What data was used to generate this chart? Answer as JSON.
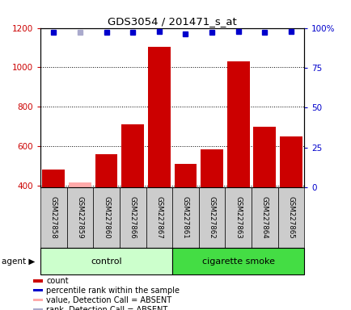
{
  "title": "GDS3054 / 201471_s_at",
  "samples": [
    "GSM227858",
    "GSM227859",
    "GSM227860",
    "GSM227866",
    "GSM227867",
    "GSM227861",
    "GSM227862",
    "GSM227863",
    "GSM227864",
    "GSM227865"
  ],
  "counts": [
    480,
    415,
    560,
    710,
    1105,
    510,
    585,
    1030,
    700,
    650
  ],
  "absent_count": [
    false,
    true,
    false,
    false,
    false,
    false,
    false,
    false,
    false,
    false
  ],
  "percentile_ranks": [
    97,
    97,
    97,
    97,
    98,
    96,
    97,
    98,
    97,
    98
  ],
  "absent_rank": [
    false,
    true,
    false,
    false,
    false,
    false,
    false,
    false,
    false,
    false
  ],
  "n_control": 5,
  "n_smoke": 5,
  "ylim_left": [
    390,
    1200
  ],
  "ylim_right": [
    0,
    100
  ],
  "yticks_left": [
    400,
    600,
    800,
    1000,
    1200
  ],
  "yticks_right": [
    0,
    25,
    50,
    75,
    100
  ],
  "bar_color_normal": "#cc0000",
  "bar_color_absent": "#ffaaaa",
  "rank_color_normal": "#0000cc",
  "rank_color_absent": "#aaaacc",
  "control_bg_light": "#ccffcc",
  "smoke_bg_dark": "#44dd44",
  "sample_bg": "#cccccc",
  "legend_items": [
    {
      "color": "#cc0000",
      "label": "count"
    },
    {
      "color": "#0000cc",
      "label": "percentile rank within the sample"
    },
    {
      "color": "#ffaaaa",
      "label": "value, Detection Call = ABSENT"
    },
    {
      "color": "#aaaacc",
      "label": "rank, Detection Call = ABSENT"
    }
  ]
}
